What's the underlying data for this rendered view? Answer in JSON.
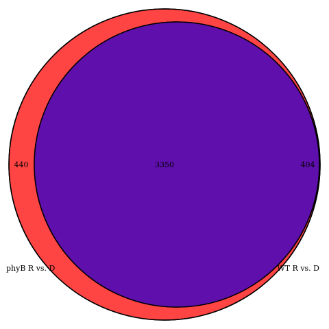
{
  "diagram": {
    "type": "venn",
    "sets": [
      {
        "name": "phyB R vs. D",
        "unique_count": "440",
        "color": "#ff4444"
      },
      {
        "name": "WT R vs. D",
        "unique_count": "404",
        "color": "#4444ff"
      }
    ],
    "intersection": {
      "count": "3350",
      "color": "#5e0fac"
    },
    "outline_color": "#000000"
  }
}
